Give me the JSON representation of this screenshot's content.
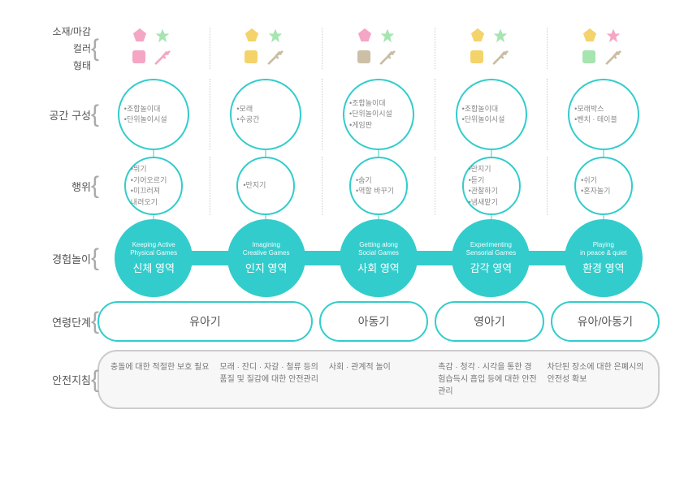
{
  "rowLabels": {
    "material": "소재/마감",
    "color": "컬러",
    "shape": "형태",
    "space": "공간 구성",
    "action": "행위",
    "experience": "경험놀이",
    "age": "연령단계",
    "safety": "안전지침"
  },
  "iconColors": [
    {
      "pent": "#f5a6c4",
      "star": "#a6e4b0",
      "sq": "#f5a6c4",
      "branch": "#f5a6c4"
    },
    {
      "pent": "#f5d36b",
      "star": "#a6e4b0",
      "sq": "#f5d36b",
      "branch": "#c9bda3"
    },
    {
      "pent": "#f5a6c4",
      "star": "#a6e4b0",
      "sq": "#cbbfa6",
      "branch": "#c9bda3"
    },
    {
      "pent": "#f5d36b",
      "star": "#a6e4b0",
      "sq": "#f5d36b",
      "branch": "#c9bda3"
    },
    {
      "pent": "#f5d36b",
      "star": "#f5a6c4",
      "sq": "#a6e4b0",
      "branch": "#c9bda3"
    }
  ],
  "space": [
    [
      "•조합놀이대",
      "•단위놀이시설"
    ],
    [
      "•모래",
      "•수공간"
    ],
    [
      "•조합놀이대",
      "•단위놀이시설",
      "•게임판"
    ],
    [
      "•조합놀이대",
      "•단위놀이시설"
    ],
    [
      "•모래박스",
      "•벤치 · 테이블"
    ]
  ],
  "action": [
    [
      "•뛰기",
      "•기어오르기",
      "•미끄러져",
      "내려오기"
    ],
    [
      "•만지기"
    ],
    [
      "•숨기",
      "•역할 바꾸기"
    ],
    [
      "•만지기",
      "•듣기",
      "•관찰하기",
      "•냄새맡기"
    ],
    [
      "•쉬기",
      "•혼자놀기"
    ]
  ],
  "experience": [
    {
      "en1": "Keeping Active",
      "en2": "Physical Games",
      "ko": "신체 영역"
    },
    {
      "en1": "Imagining",
      "en2": "Creative Games",
      "ko": "인지 영역"
    },
    {
      "en1": "Getting along",
      "en2": "Social Games",
      "ko": "사회 영역"
    },
    {
      "en1": "Experimenting",
      "en2": "Sensorial Games",
      "ko": "감각 영역"
    },
    {
      "en1": "Playing",
      "en2": "in peace & quiet",
      "ko": "환경 영역"
    }
  ],
  "age": [
    {
      "label": "유아기",
      "span": 2
    },
    {
      "label": "아동기",
      "span": 1
    },
    {
      "label": "영아기",
      "span": 1
    },
    {
      "label": "유아/아동기",
      "span": 1
    }
  ],
  "safety": [
    "충돌에 대한\n적절한 보호 필요",
    "모래 · 잔디 · 자갈 · 철류 등의 품질 및 질감에 대한 안전관리",
    "사회 · 관계적 놀이",
    "촉감 · 청각 · 시각을 통한 경험습득시 흡입 등에 대한 안전 관리",
    "차단된 장소에 대한 은폐시의 안전성 확보"
  ],
  "colors": {
    "teal": "#33cccc",
    "border": "#cccccc"
  }
}
